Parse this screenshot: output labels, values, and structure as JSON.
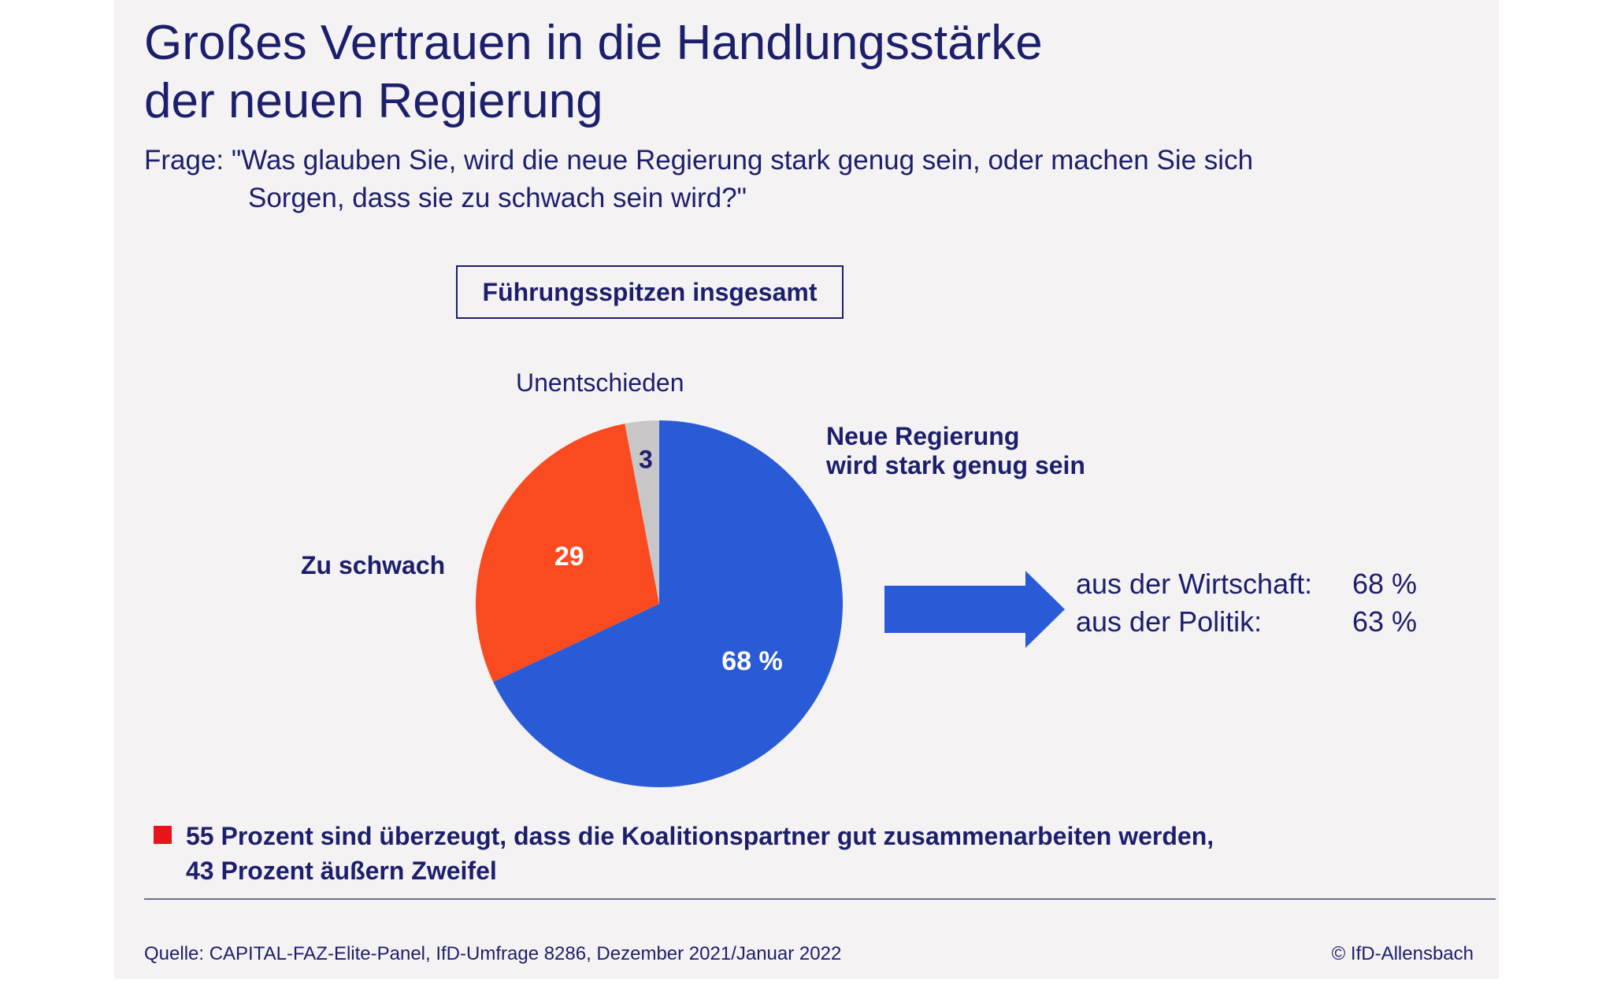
{
  "title_line1": "Großes Vertrauen in die Handlungsstärke",
  "title_line2": "der neuen Regierung",
  "question_line1": "Frage: \"Was glauben Sie, wird die neue Regierung stark genug sein, oder machen Sie sich",
  "question_line2": "Sorgen, dass sie zu schwach sein wird?\"",
  "box_label": "Führungsspitzen insgesamt",
  "chart_data": {
    "type": "pie",
    "slices": [
      {
        "label_line1": "Neue Regierung",
        "label_line2": "wird stark genug sein",
        "value": 68,
        "value_label": "68 %",
        "color": "#2a5bd7"
      },
      {
        "label_line1": "Zu schwach",
        "label_line2": "",
        "value": 29,
        "value_label": "29",
        "color": "#fa4a1f"
      },
      {
        "label_line1": "Unentschieden",
        "label_line2": "",
        "value": 3,
        "value_label": "3",
        "color": "#c8c6c7"
      }
    ],
    "breakdown": [
      {
        "label": "aus der Wirtschaft:",
        "value": "68 %"
      },
      {
        "label": "aus der Politik:",
        "value": "63 %"
      }
    ]
  },
  "note_line1": "55 Prozent sind überzeugt, dass die Koalitionspartner gut zusammenarbeiten werden,",
  "note_line2": "43 Prozent äußern Zweifel",
  "source": "Quelle: CAPITAL-FAZ-Elite-Panel, IfD-Umfrage 8286, Dezember 2021/Januar 2022",
  "copyright": "© IfD-Allensbach",
  "colors": {
    "text": "#1c1f6b",
    "arrow": "#2a5bd7",
    "bullet": "#e8141a",
    "background": "#f4f2f3"
  }
}
